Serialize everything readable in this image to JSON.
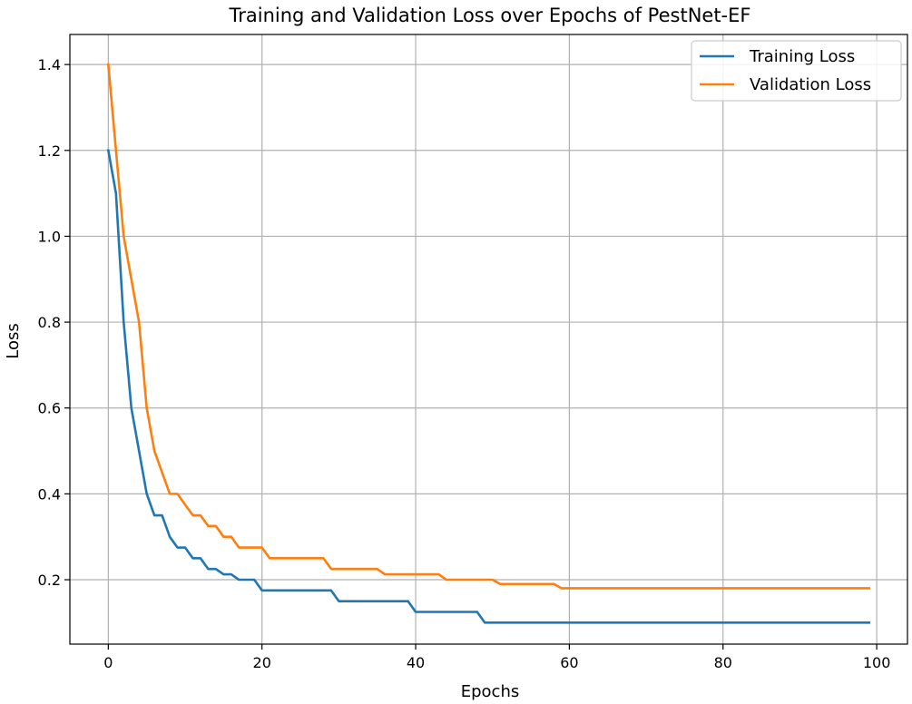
{
  "chart_data": {
    "type": "line",
    "title": "Training and Validation Loss over Epochs of PestNet-EF",
    "xlabel": "Epochs",
    "ylabel": "Loss",
    "xlim": [
      -5,
      104
    ],
    "ylim": [
      0.05,
      1.47
    ],
    "xticks": [
      0,
      20,
      40,
      60,
      80,
      100
    ],
    "yticks": [
      0.2,
      0.4,
      0.6,
      0.8,
      1.0,
      1.2,
      1.4
    ],
    "grid": true,
    "legend_position": "top-right",
    "series": [
      {
        "name": "Training Loss",
        "color": "#1f77b4",
        "points": [
          [
            0,
            1.2
          ],
          [
            1,
            1.1
          ],
          [
            2,
            0.8
          ],
          [
            3,
            0.6
          ],
          [
            4,
            0.5
          ],
          [
            5,
            0.4
          ],
          [
            6,
            0.35
          ],
          [
            7,
            0.35
          ],
          [
            8,
            0.3
          ],
          [
            9,
            0.275
          ],
          [
            10,
            0.275
          ],
          [
            11,
            0.25
          ],
          [
            12,
            0.25
          ],
          [
            13,
            0.225
          ],
          [
            14,
            0.225
          ],
          [
            15,
            0.2125
          ],
          [
            16,
            0.2125
          ],
          [
            17,
            0.2
          ],
          [
            18,
            0.2
          ],
          [
            19,
            0.2
          ],
          [
            20,
            0.175
          ],
          [
            29,
            0.175
          ],
          [
            30,
            0.15
          ],
          [
            39,
            0.15
          ],
          [
            40,
            0.125
          ],
          [
            48,
            0.125
          ],
          [
            49,
            0.1
          ],
          [
            99,
            0.1
          ]
        ]
      },
      {
        "name": "Validation Loss",
        "color": "#ff7f0e",
        "points": [
          [
            0,
            1.4
          ],
          [
            1,
            1.2
          ],
          [
            2,
            1.0
          ],
          [
            3,
            0.9
          ],
          [
            4,
            0.8
          ],
          [
            5,
            0.6
          ],
          [
            6,
            0.5
          ],
          [
            7,
            0.45
          ],
          [
            8,
            0.4
          ],
          [
            9,
            0.4
          ],
          [
            10,
            0.375
          ],
          [
            11,
            0.35
          ],
          [
            12,
            0.35
          ],
          [
            13,
            0.325
          ],
          [
            14,
            0.325
          ],
          [
            15,
            0.3
          ],
          [
            16,
            0.3
          ],
          [
            17,
            0.275
          ],
          [
            20,
            0.275
          ],
          [
            21,
            0.25
          ],
          [
            28,
            0.25
          ],
          [
            29,
            0.225
          ],
          [
            35,
            0.225
          ],
          [
            36,
            0.2125
          ],
          [
            43,
            0.2125
          ],
          [
            44,
            0.2
          ],
          [
            50,
            0.2
          ],
          [
            51,
            0.19
          ],
          [
            58,
            0.19
          ],
          [
            59,
            0.18
          ],
          [
            99,
            0.18
          ]
        ]
      }
    ]
  }
}
